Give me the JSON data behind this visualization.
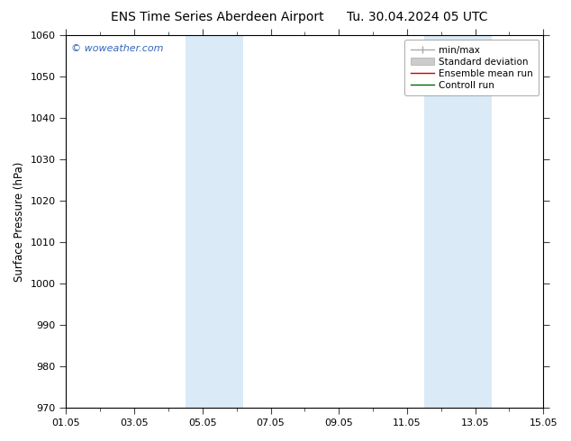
{
  "title_left": "ENS Time Series Aberdeen Airport",
  "title_right": "Tu. 30.04.2024 05 UTC",
  "ylabel": "Surface Pressure (hPa)",
  "ylim": [
    970,
    1060
  ],
  "yticks": [
    970,
    980,
    990,
    1000,
    1010,
    1020,
    1030,
    1040,
    1050,
    1060
  ],
  "xlim_days": [
    0,
    14
  ],
  "xtick_labels": [
    "01.05",
    "03.05",
    "05.05",
    "07.05",
    "09.05",
    "11.05",
    "13.05",
    "15.05"
  ],
  "xtick_positions": [
    0,
    2,
    4,
    6,
    8,
    10,
    12,
    14
  ],
  "shaded_bands": [
    {
      "x_start": 3.5,
      "x_end": 5.2,
      "color": "#daeaf6"
    },
    {
      "x_start": 10.5,
      "x_end": 12.5,
      "color": "#daeaf6"
    }
  ],
  "legend_entries": [
    {
      "label": "min/max",
      "color": "#aaaaaa",
      "lw": 1.0
    },
    {
      "label": "Standard deviation",
      "color": "#cccccc",
      "lw": 6
    },
    {
      "label": "Ensemble mean run",
      "color": "#cc0000",
      "lw": 1.0
    },
    {
      "label": "Controll run",
      "color": "#006600",
      "lw": 1.0
    }
  ],
  "watermark": "© woweather.com",
  "watermark_color": "#3366bb",
  "bg_color": "#ffffff",
  "plot_bg_color": "#ffffff",
  "title_fontsize": 10,
  "tick_fontsize": 8,
  "ylabel_fontsize": 8.5,
  "legend_fontsize": 7.5
}
